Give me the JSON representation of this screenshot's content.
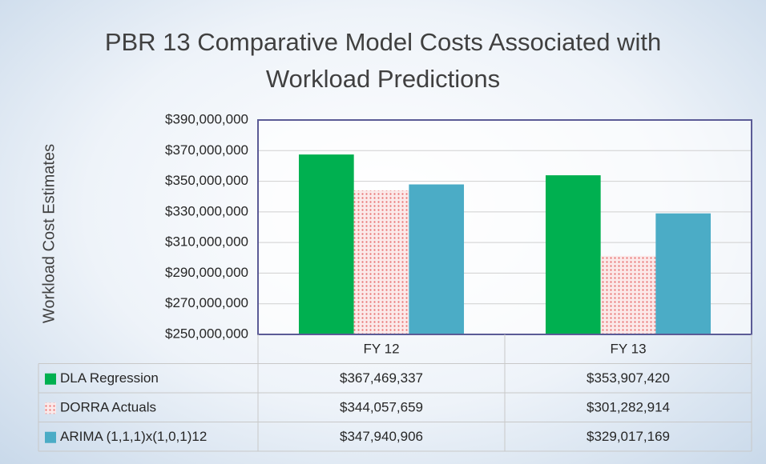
{
  "chart_data": {
    "type": "bar",
    "title": "PBR 13 Comparative Model Costs Associated with Workload Predictions",
    "y_label": "Workload Cost Estimates",
    "categories": [
      "FY 12",
      "FY 13"
    ],
    "series": [
      {
        "name": "DLA Regression",
        "color": "#00b050",
        "values": [
          367469337,
          353907420
        ],
        "value_labels": [
          "$367,469,337",
          "$353,907,420"
        ]
      },
      {
        "name": "DORRA Actuals",
        "color": "#e87070",
        "pattern": "dots",
        "values": [
          344057659,
          301282914
        ],
        "value_labels": [
          "$344,057,659",
          "$301,282,914"
        ]
      },
      {
        "name": "ARIMA (1,1,1)x(1,0,1)12",
        "color": "#4bacc6",
        "values": [
          347940906,
          329017169
        ],
        "value_labels": [
          "$347,940,906",
          "$329,017,169"
        ]
      }
    ],
    "ylim": [
      250000000,
      390000000
    ],
    "yticks": [
      {
        "value": 250000000,
        "label": "$250,000,000"
      },
      {
        "value": 270000000,
        "label": "$270,000,000"
      },
      {
        "value": 290000000,
        "label": "$290,000,000"
      },
      {
        "value": 310000000,
        "label": "$310,000,000"
      },
      {
        "value": 330000000,
        "label": "$330,000,000"
      },
      {
        "value": 350000000,
        "label": "$350,000,000"
      },
      {
        "value": 370000000,
        "label": "$370,000,000"
      },
      {
        "value": 390000000,
        "label": "$390,000,000"
      }
    ],
    "grid": true
  }
}
